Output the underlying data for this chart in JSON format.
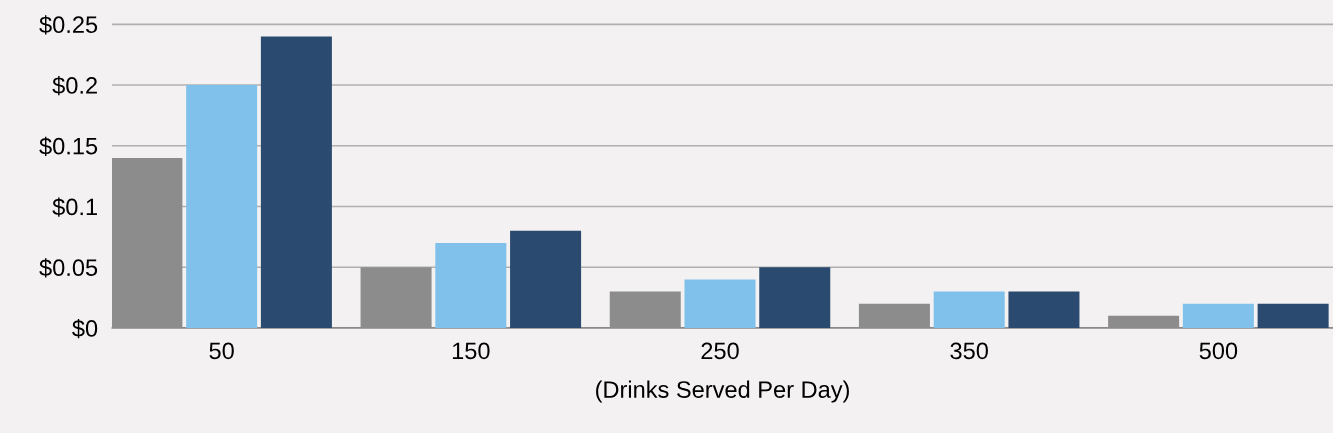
{
  "chart_data": {
    "type": "bar",
    "xlabel": "(Drinks Served Per Day)",
    "categories": [
      "50",
      "150",
      "250",
      "350",
      "500"
    ],
    "series": [
      {
        "color": "#8c8c8c",
        "values": [
          0.14,
          0.05,
          0.03,
          0.02,
          0.01
        ]
      },
      {
        "color": "#7fc1ea",
        "values": [
          0.2,
          0.07,
          0.04,
          0.03,
          0.02
        ]
      },
      {
        "color": "#2b4a6f",
        "values": [
          0.24,
          0.08,
          0.05,
          0.03,
          0.02
        ]
      }
    ],
    "ylim": [
      0,
      0.27
    ],
    "yticks": [
      {
        "value": 0,
        "label": "$0"
      },
      {
        "value": 0.05,
        "label": "$0.05"
      },
      {
        "value": 0.1,
        "label": "$0.1"
      },
      {
        "value": 0.15,
        "label": "$0.15"
      },
      {
        "value": 0.2,
        "label": "$0.2"
      },
      {
        "value": 0.25,
        "label": "$0.25"
      }
    ],
    "grid": "y",
    "legend": false
  }
}
